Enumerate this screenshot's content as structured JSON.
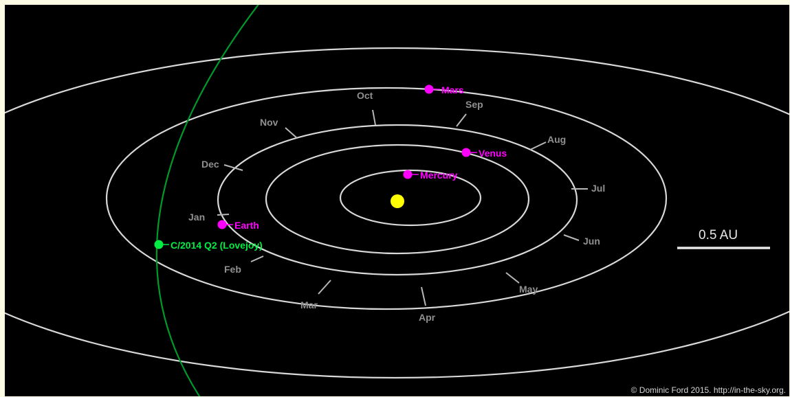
{
  "colors": {
    "frame": "#fdfde6",
    "space": "#000000",
    "orbit": "#d8d8d8",
    "planet": "#ff00ff",
    "sun": "#ffff00",
    "comet": "#00ee44",
    "comet_path": "#009a2a",
    "month_label": "#909090",
    "scale": "#e8e8e8",
    "credit": "#d8d8d8"
  },
  "sun": {
    "name": "Sun"
  },
  "planets": [
    {
      "name": "Mercury",
      "label": "Mercury"
    },
    {
      "name": "Venus",
      "label": "Venus"
    },
    {
      "name": "Earth",
      "label": "Earth"
    },
    {
      "name": "Mars",
      "label": "Mars"
    }
  ],
  "comet": {
    "label": "C/2014 Q2 (Lovejoy)"
  },
  "months": [
    "Jan",
    "Feb",
    "Mar",
    "Apr",
    "May",
    "Jun",
    "Jul",
    "Aug",
    "Sep",
    "Oct",
    "Nov",
    "Dec"
  ],
  "scale_bar": {
    "label": "0.5 AU"
  },
  "credit": "© Dominic Ford 2015. http://in-the-sky.org."
}
